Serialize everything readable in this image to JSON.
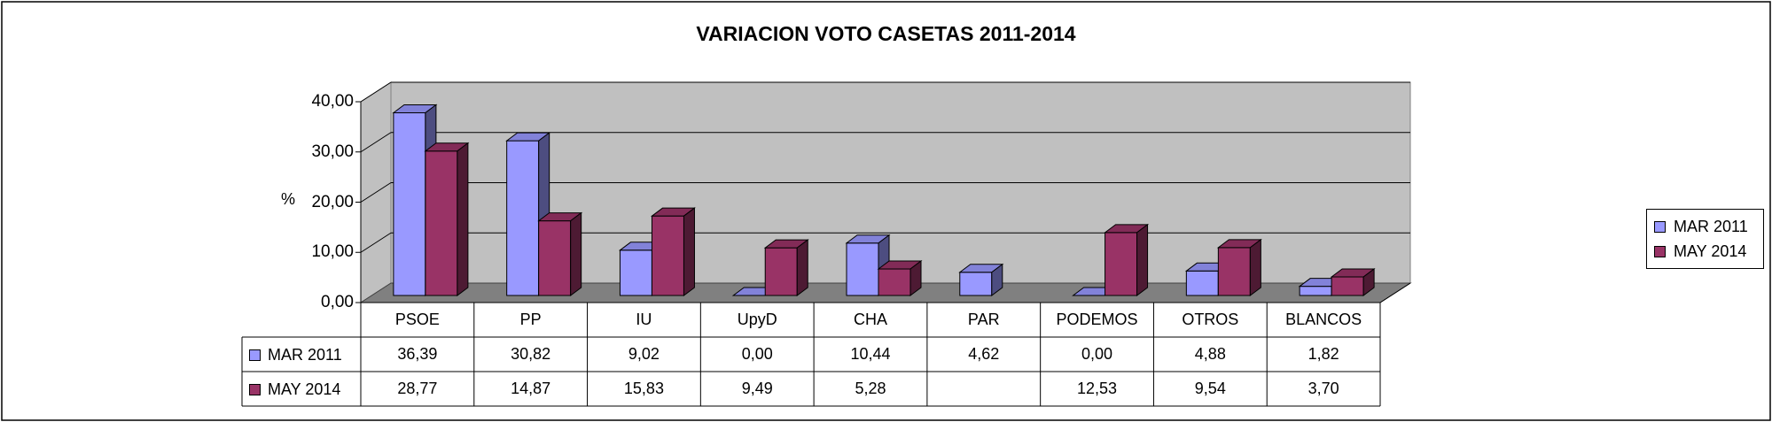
{
  "chart_data": {
    "type": "bar",
    "title": "VARIACION VOTO CASETAS 2011-2014",
    "ylabel": "%",
    "ylim": [
      0,
      40
    ],
    "yticks": [
      "40,00",
      "30,00",
      "20,00",
      "10,00",
      "0,00"
    ],
    "ytick_values": [
      40,
      30,
      20,
      10,
      0
    ],
    "grid": true,
    "legend_position": "right",
    "categories": [
      "PSOE",
      "PP",
      "IU",
      "UpyD",
      "CHA",
      "PAR",
      "PODEMOS",
      "OTROS",
      "BLANCOS"
    ],
    "series": [
      {
        "name": "MAR 2011",
        "color": "#9999FF",
        "values": [
          36.39,
          30.82,
          9.02,
          0.0,
          10.44,
          4.62,
          0.0,
          4.88,
          1.82
        ],
        "labels": [
          "36,39",
          "30,82",
          "9,02",
          "0,00",
          "10,44",
          "4,62",
          "0,00",
          "4,88",
          "1,82"
        ]
      },
      {
        "name": "MAY 2014",
        "color": "#993366",
        "values": [
          28.77,
          14.87,
          15.83,
          9.49,
          5.28,
          null,
          12.53,
          9.54,
          3.7
        ],
        "labels": [
          "28,77",
          "14,87",
          "15,83",
          "9,49",
          "5,28",
          "",
          "12,53",
          "9,54",
          "3,70"
        ]
      }
    ]
  }
}
